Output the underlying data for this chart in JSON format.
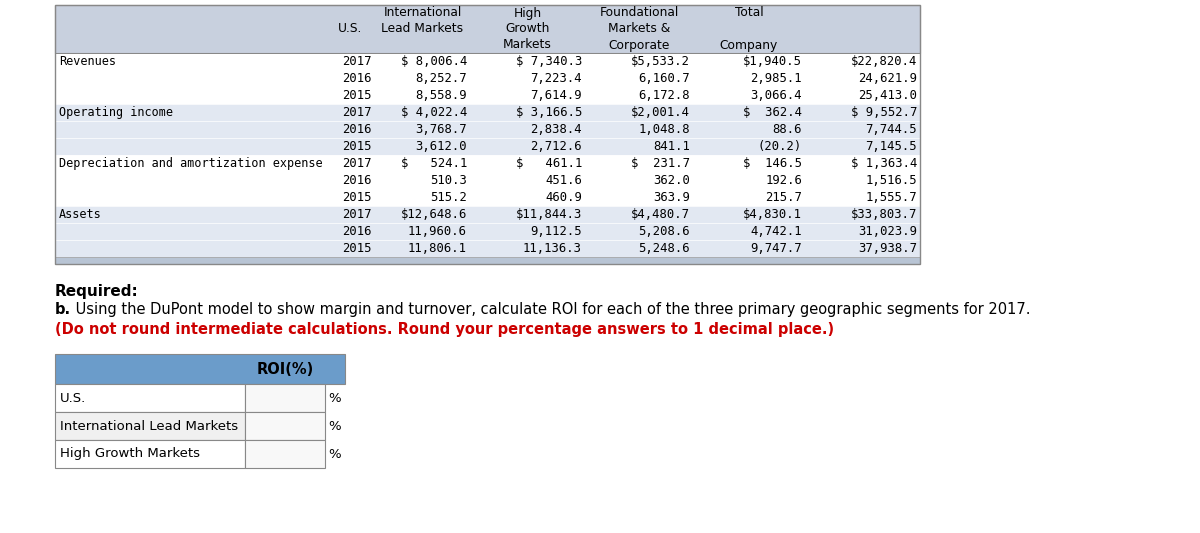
{
  "header_bg": "#c8d0de",
  "row_bg_white": "#ffffff",
  "row_bg_gray": "#e2e8f2",
  "bottom_strip_bg": "#b8c4d4",
  "font_size_data": 8.8,
  "font_size_header": 8.8,
  "font_size_text": 10.0,
  "sections": [
    {
      "label": "Revenues",
      "rows": [
        [
          "2017",
          "$ 8,006.4",
          "$ 7,340.3",
          "$5,533.2",
          "$1,940.5",
          "$22,820.4"
        ],
        [
          "2016",
          "8,252.7",
          "7,223.4",
          "6,160.7",
          "2,985.1",
          "24,621.9"
        ],
        [
          "2015",
          "8,558.9",
          "7,614.9",
          "6,172.8",
          "3,066.4",
          "25,413.0"
        ]
      ]
    },
    {
      "label": "Operating income",
      "rows": [
        [
          "2017",
          "$ 4,022.4",
          "$ 3,166.5",
          "$2,001.4",
          "$  362.4",
          "$ 9,552.7"
        ],
        [
          "2016",
          "3,768.7",
          "2,838.4",
          "1,048.8",
          "88.6",
          "7,744.5"
        ],
        [
          "2015",
          "3,612.0",
          "2,712.6",
          "841.1",
          "(20.2)",
          "7,145.5"
        ]
      ]
    },
    {
      "label": "Depreciation and amortization expense",
      "rows": [
        [
          "2017",
          "$   524.1",
          "$   461.1",
          "$  231.7",
          "$  146.5",
          "$ 1,363.4"
        ],
        [
          "2016",
          "510.3",
          "451.6",
          "362.0",
          "192.6",
          "1,516.5"
        ],
        [
          "2015",
          "515.2",
          "460.9",
          "363.9",
          "215.7",
          "1,555.7"
        ]
      ]
    },
    {
      "label": "Assets",
      "rows": [
        [
          "2017",
          "$12,648.6",
          "$11,844.3",
          "$4,480.7",
          "$4,830.1",
          "$33,803.7"
        ],
        [
          "2016",
          "11,960.6",
          "9,112.5",
          "5,208.6",
          "4,742.1",
          "31,023.9"
        ],
        [
          "2015",
          "11,806.1",
          "11,136.3",
          "5,248.6",
          "9,747.7",
          "37,938.7"
        ]
      ]
    }
  ],
  "required_text": "Required:",
  "question_bold": "b.",
  "question_text": " Using the DuPont model to show margin and turnover, calculate ROI for each of the three primary geographic segments for 2017.",
  "note_text": "(Do not round intermediate calculations. Round your percentage answers to 1 decimal place.)",
  "roi_header_text": "ROI(%)",
  "roi_header_bg": "#6b9cca",
  "roi_rows": [
    "U.S.",
    "International Lead Markets",
    "High Growth Markets"
  ],
  "roi_row_bgs": [
    "#ffffff",
    "#f0f0f0",
    "#ffffff"
  ]
}
